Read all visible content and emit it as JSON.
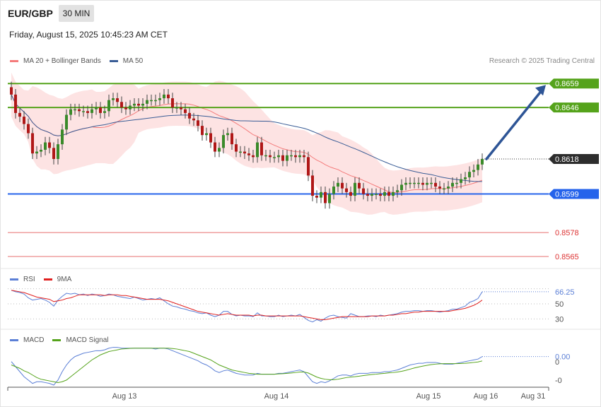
{
  "header": {
    "symbol": "EUR/GBP",
    "timeframe": "30 MIN",
    "datetime": "Friday, August 15, 2025 10:45:23 AM CET"
  },
  "legend": {
    "ma20": {
      "label": "MA 20 + Bollinger Bands",
      "color": "#f47b7b"
    },
    "ma50": {
      "label": "MA 50",
      "color": "#3a5d96"
    },
    "copyright": "Research © 2025 Trading Central"
  },
  "rsi_legend": {
    "rsi": {
      "label": "RSI",
      "color": "#5b7fd6"
    },
    "ma9": {
      "label": "9MA",
      "color": "#e0201f"
    }
  },
  "macd_legend": {
    "macd": {
      "label": "MACD",
      "color": "#5b7fd6"
    },
    "signal": {
      "label": "MACD Signal",
      "color": "#55a31b"
    }
  },
  "chart_data": {
    "type": "candlestick",
    "x_labels": [
      "Aug 13",
      "Aug 14",
      "Aug 15",
      "Aug 16",
      "Aug 31"
    ],
    "price_axis": {
      "min": 0.856,
      "max": 0.8666
    },
    "levels": [
      {
        "value": 0.8659,
        "label": "0.8659",
        "color": "#55a31b",
        "style": "resistance"
      },
      {
        "value": 0.8646,
        "label": "0.8646",
        "color": "#55a31b",
        "style": "resistance"
      },
      {
        "value": 0.8618,
        "label": "0.8618",
        "color": "#2d2d2d",
        "style": "current"
      },
      {
        "value": 0.8599,
        "label": "0.8599",
        "color": "#2563eb",
        "style": "support"
      },
      {
        "value": 0.8578,
        "label": "0.8578",
        "color": "#d33",
        "style": "support-light"
      },
      {
        "value": 0.8565,
        "label": "0.8565",
        "color": "#d33",
        "style": "support-light"
      }
    ],
    "forecast_arrow": {
      "from": 0.8618,
      "to": 0.8659
    },
    "closes": [
      0.8653,
      0.8643,
      0.8641,
      0.8637,
      0.8632,
      0.8621,
      0.8622,
      0.8623,
      0.8627,
      0.8624,
      0.8618,
      0.8626,
      0.8634,
      0.8642,
      0.8645,
      0.8645,
      0.8644,
      0.8644,
      0.8643,
      0.8645,
      0.8646,
      0.8643,
      0.8644,
      0.865,
      0.8651,
      0.8649,
      0.8646,
      0.8645,
      0.8647,
      0.8648,
      0.8647,
      0.8648,
      0.865,
      0.865,
      0.865,
      0.8651,
      0.8653,
      0.8651,
      0.8646,
      0.8646,
      0.8645,
      0.8643,
      0.864,
      0.8639,
      0.8636,
      0.8631,
      0.8632,
      0.8627,
      0.8622,
      0.8624,
      0.8631,
      0.8632,
      0.8626,
      0.8622,
      0.8622,
      0.8621,
      0.862,
      0.8619,
      0.8627,
      0.862,
      0.862,
      0.8619,
      0.8619,
      0.862,
      0.8617,
      0.862,
      0.862,
      0.8619,
      0.862,
      0.8619,
      0.8609,
      0.8598,
      0.8597,
      0.86,
      0.8594,
      0.8599,
      0.8603,
      0.8605,
      0.8602,
      0.86,
      0.8598,
      0.8605,
      0.8602,
      0.8599,
      0.8598,
      0.8599,
      0.8599,
      0.8598,
      0.86,
      0.8598,
      0.86,
      0.8601,
      0.8604,
      0.8605,
      0.8605,
      0.8605,
      0.8605,
      0.8604,
      0.8605,
      0.8605,
      0.8603,
      0.8602,
      0.8602,
      0.8603,
      0.8605,
      0.8605,
      0.8607,
      0.8608,
      0.8611,
      0.8612,
      0.8615,
      0.8618
    ],
    "rsi_value_label": "66.25",
    "rsi_levels": [
      "70",
      "50",
      "30"
    ],
    "rsi": [
      68,
      66,
      65,
      63,
      58,
      55,
      56,
      57,
      55,
      52,
      47,
      55,
      60,
      64,
      63,
      64,
      62,
      63,
      61,
      63,
      62,
      60,
      61,
      63,
      62,
      60,
      59,
      58,
      57,
      59,
      57,
      55,
      56,
      57,
      56,
      58,
      54,
      50,
      47,
      46,
      44,
      43,
      41,
      40,
      38,
      37,
      38,
      35,
      33,
      35,
      40,
      40,
      36,
      34,
      35,
      34,
      34,
      33,
      38,
      34,
      34,
      33,
      33,
      35,
      33,
      34,
      35,
      34,
      36,
      32,
      28,
      26,
      29,
      27,
      31,
      34,
      35,
      33,
      32,
      31,
      37,
      35,
      33,
      33,
      34,
      34,
      33,
      35,
      34,
      35,
      36,
      37,
      39,
      40,
      40,
      41,
      41,
      40,
      41,
      41,
      40,
      39,
      40,
      41,
      43,
      43,
      45,
      47,
      52,
      54,
      57,
      66
    ],
    "rsi_ma": [
      68,
      67,
      66,
      65,
      63,
      61,
      59,
      58,
      57,
      56,
      53,
      54,
      55,
      57,
      58,
      60,
      62,
      62,
      62,
      62,
      62,
      62,
      61,
      62,
      62,
      62,
      61,
      61,
      60,
      59,
      58,
      57,
      56,
      56,
      56,
      56,
      55,
      54,
      52,
      50,
      48,
      46,
      44,
      42,
      40,
      39,
      38,
      37,
      36,
      35,
      36,
      37,
      36,
      35,
      35,
      35,
      35,
      34,
      35,
      35,
      34,
      34,
      34,
      34,
      34,
      34,
      34,
      34,
      34,
      33,
      32,
      31,
      30,
      29,
      29,
      30,
      31,
      32,
      33,
      33,
      33,
      33,
      33,
      33,
      33,
      34,
      34,
      34,
      34,
      35,
      35,
      36,
      37,
      37,
      38,
      39,
      39,
      40,
      40,
      40,
      40,
      40,
      40,
      40,
      41,
      42,
      43,
      44,
      46,
      48,
      51,
      55
    ],
    "macd_labels": [
      "0.00",
      "0",
      "-0"
    ],
    "macd": [
      0.2,
      -0.1,
      -0.4,
      -0.7,
      -0.9,
      -1.1,
      -1.0,
      -1.0,
      -1.05,
      -1.1,
      -1.2,
      -0.9,
      -0.4,
      0.0,
      0.3,
      0.5,
      0.6,
      0.7,
      0.75,
      0.8,
      0.85,
      0.85,
      0.9,
      1.0,
      1.05,
      1.05,
      1.0,
      1.0,
      1.0,
      1.0,
      1.0,
      1.0,
      1.0,
      1.0,
      0.95,
      1.0,
      1.0,
      0.95,
      0.85,
      0.75,
      0.65,
      0.55,
      0.45,
      0.35,
      0.25,
      0.1,
      0.0,
      -0.15,
      -0.35,
      -0.45,
      -0.35,
      -0.3,
      -0.4,
      -0.5,
      -0.55,
      -0.6,
      -0.6,
      -0.6,
      -0.5,
      -0.55,
      -0.55,
      -0.55,
      -0.55,
      -0.5,
      -0.5,
      -0.45,
      -0.4,
      -0.35,
      -0.3,
      -0.4,
      -0.7,
      -1.0,
      -1.1,
      -1.0,
      -1.05,
      -0.95,
      -0.8,
      -0.65,
      -0.6,
      -0.6,
      -0.65,
      -0.55,
      -0.5,
      -0.5,
      -0.5,
      -0.45,
      -0.45,
      -0.45,
      -0.4,
      -0.4,
      -0.35,
      -0.3,
      -0.2,
      -0.1,
      0.0,
      0.05,
      0.1,
      0.1,
      0.15,
      0.15,
      0.15,
      0.1,
      0.05,
      0.05,
      0.05,
      0.1,
      0.15,
      0.2,
      0.25,
      0.3,
      0.35,
      0.5
    ],
    "macd_signal": [
      0.0,
      -0.1,
      -0.2,
      -0.35,
      -0.45,
      -0.6,
      -0.75,
      -0.85,
      -0.9,
      -0.95,
      -1.0,
      -1.05,
      -1.0,
      -0.9,
      -0.7,
      -0.5,
      -0.3,
      -0.1,
      0.1,
      0.3,
      0.45,
      0.6,
      0.7,
      0.8,
      0.85,
      0.9,
      0.95,
      0.97,
      0.99,
      1.0,
      1.0,
      1.0,
      1.0,
      1.0,
      1.0,
      1.0,
      1.0,
      1.0,
      0.98,
      0.95,
      0.9,
      0.85,
      0.8,
      0.7,
      0.6,
      0.5,
      0.4,
      0.3,
      0.15,
      0.0,
      -0.1,
      -0.2,
      -0.3,
      -0.35,
      -0.4,
      -0.45,
      -0.5,
      -0.52,
      -0.55,
      -0.55,
      -0.55,
      -0.55,
      -0.55,
      -0.53,
      -0.52,
      -0.5,
      -0.48,
      -0.45,
      -0.42,
      -0.42,
      -0.48,
      -0.6,
      -0.72,
      -0.8,
      -0.85,
      -0.88,
      -0.88,
      -0.85,
      -0.8,
      -0.75,
      -0.72,
      -0.7,
      -0.67,
      -0.63,
      -0.6,
      -0.57,
      -0.55,
      -0.52,
      -0.5,
      -0.47,
      -0.45,
      -0.42,
      -0.38,
      -0.32,
      -0.25,
      -0.18,
      -0.12,
      -0.07,
      -0.02,
      0.02,
      0.05,
      0.07,
      0.08,
      0.08,
      0.08,
      0.08,
      0.09,
      0.1,
      0.12,
      0.15,
      0.18,
      0.24
    ]
  }
}
